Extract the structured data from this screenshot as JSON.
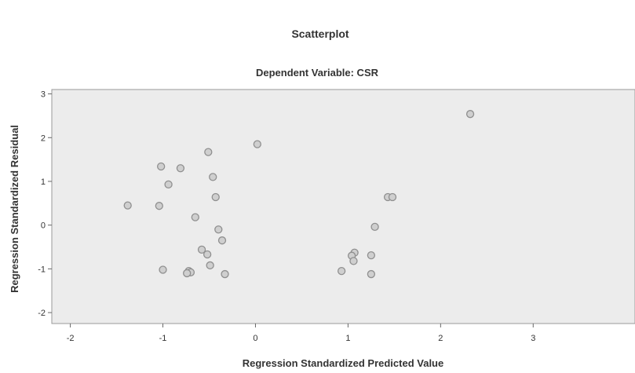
{
  "chart_data": {
    "type": "scatter",
    "title": "Scatterplot",
    "subtitle": "Dependent Variable: CSR",
    "xlabel": "Regression Standardized Predicted Value",
    "ylabel": "Regression Standardized Residual",
    "xlim": [
      -2.2,
      4.1
    ],
    "ylim": [
      -2.25,
      3.1
    ],
    "xticks": [
      -2,
      -1,
      0,
      1,
      2,
      3
    ],
    "yticks": [
      -2,
      -1,
      0,
      1,
      2,
      3
    ],
    "xtick_labels": [
      "-2",
      "-1",
      "0",
      "1",
      "2",
      "3"
    ],
    "ytick_labels": [
      "-2",
      "-1",
      "0",
      "1",
      "2",
      "3"
    ],
    "grid": false,
    "marker_color": "#8f8f8f",
    "plot_background": "#ececec",
    "points": [
      {
        "x": 2.32,
        "y": 2.54
      },
      {
        "x": 0.02,
        "y": 1.85
      },
      {
        "x": -0.51,
        "y": 1.67
      },
      {
        "x": -1.02,
        "y": 1.34
      },
      {
        "x": -0.81,
        "y": 1.3
      },
      {
        "x": -0.46,
        "y": 1.1
      },
      {
        "x": -0.94,
        "y": 0.93
      },
      {
        "x": -0.43,
        "y": 0.64
      },
      {
        "x": -1.38,
        "y": 0.45
      },
      {
        "x": -1.04,
        "y": 0.44
      },
      {
        "x": -0.65,
        "y": 0.18
      },
      {
        "x": 1.43,
        "y": 0.64
      },
      {
        "x": 1.48,
        "y": 0.64
      },
      {
        "x": 1.29,
        "y": -0.04
      },
      {
        "x": -0.4,
        "y": -0.1
      },
      {
        "x": -0.36,
        "y": -0.35
      },
      {
        "x": -0.58,
        "y": -0.56
      },
      {
        "x": -0.52,
        "y": -0.67
      },
      {
        "x": 1.07,
        "y": -0.63
      },
      {
        "x": 1.25,
        "y": -0.69
      },
      {
        "x": 1.04,
        "y": -0.7
      },
      {
        "x": 1.06,
        "y": -0.82
      },
      {
        "x": -0.49,
        "y": -0.92
      },
      {
        "x": -1.0,
        "y": -1.02
      },
      {
        "x": -0.72,
        "y": -1.05
      },
      {
        "x": -0.7,
        "y": -1.08
      },
      {
        "x": -0.74,
        "y": -1.1
      },
      {
        "x": -0.33,
        "y": -1.12
      },
      {
        "x": 0.93,
        "y": -1.05
      },
      {
        "x": 1.25,
        "y": -1.12
      }
    ]
  }
}
